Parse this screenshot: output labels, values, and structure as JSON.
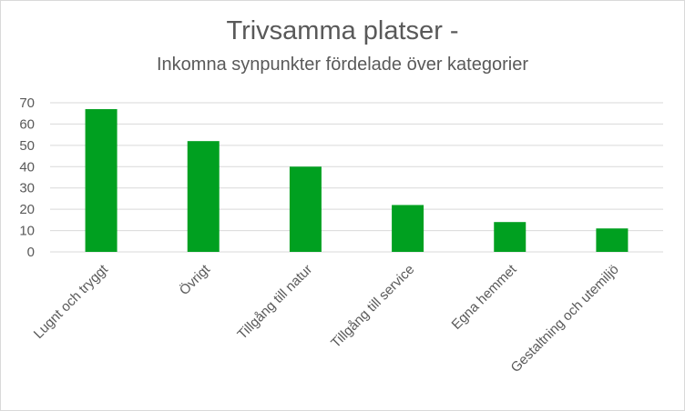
{
  "chart_data": {
    "type": "bar",
    "title": "Trivsamma platser -",
    "subtitle": "Inkomna synpunkter fördelade över kategorier",
    "xlabel": "",
    "ylabel": "",
    "categories": [
      "Lugnt och tryggt",
      "Övrigt",
      "Tillgång till natur",
      "Tillgång till service",
      "Egna hemmet",
      "Gestaltning och utemiljö"
    ],
    "values": [
      67,
      52,
      40,
      22,
      14,
      11
    ],
    "ylim": [
      0,
      70
    ],
    "yticks": [
      "0",
      "10",
      "20",
      "30",
      "40",
      "50",
      "60",
      "70"
    ],
    "grid": true,
    "legend": "none",
    "bar_color": "#00a020",
    "grid_color": "#d9d9d9",
    "text_color": "#595959"
  }
}
